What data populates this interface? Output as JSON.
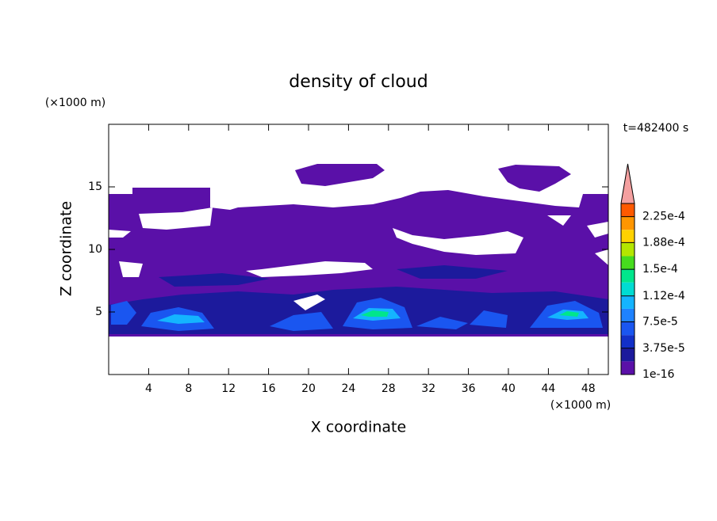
{
  "chart_data": {
    "type": "contour",
    "title": "density of cloud",
    "x_label": "X coordinate",
    "y_label": "Z coordinate",
    "x_unit": "(×1000 m)",
    "y_unit": "(×1000 m)",
    "time_label": "t=482400 s",
    "xlim": [
      0,
      50
    ],
    "xticks": [
      4,
      8,
      12,
      16,
      20,
      24,
      28,
      32,
      36,
      40,
      44,
      48
    ],
    "ylim": [
      0,
      20
    ],
    "yticks": [
      5,
      10,
      15
    ],
    "colorbar": {
      "lim": [
        0,
        0.00024375
      ],
      "colors": [
        "#5a10a8",
        "#1c1a9c",
        "#1230c8",
        "#1a56f0",
        "#1e82ff",
        "#14b4ff",
        "#00dcd2",
        "#00e68c",
        "#46dc1e",
        "#b4e600",
        "#ffd200",
        "#ff9600",
        "#ff5a00",
        "#f01e1e"
      ],
      "extend_color": "#f4a0a0",
      "ticks": [
        {
          "value": 1e-16,
          "label": "1e-16"
        },
        {
          "value": 3.75e-05,
          "label": "3.75e-5"
        },
        {
          "value": 7.5e-05,
          "label": "7.5e-5"
        },
        {
          "value": 0.000112,
          "label": "1.12e-4"
        },
        {
          "value": 0.00015,
          "label": "1.5e-4"
        },
        {
          "value": 0.000188,
          "label": "1.88e-4"
        },
        {
          "value": 0.000225,
          "label": "2.25e-4"
        }
      ]
    }
  }
}
